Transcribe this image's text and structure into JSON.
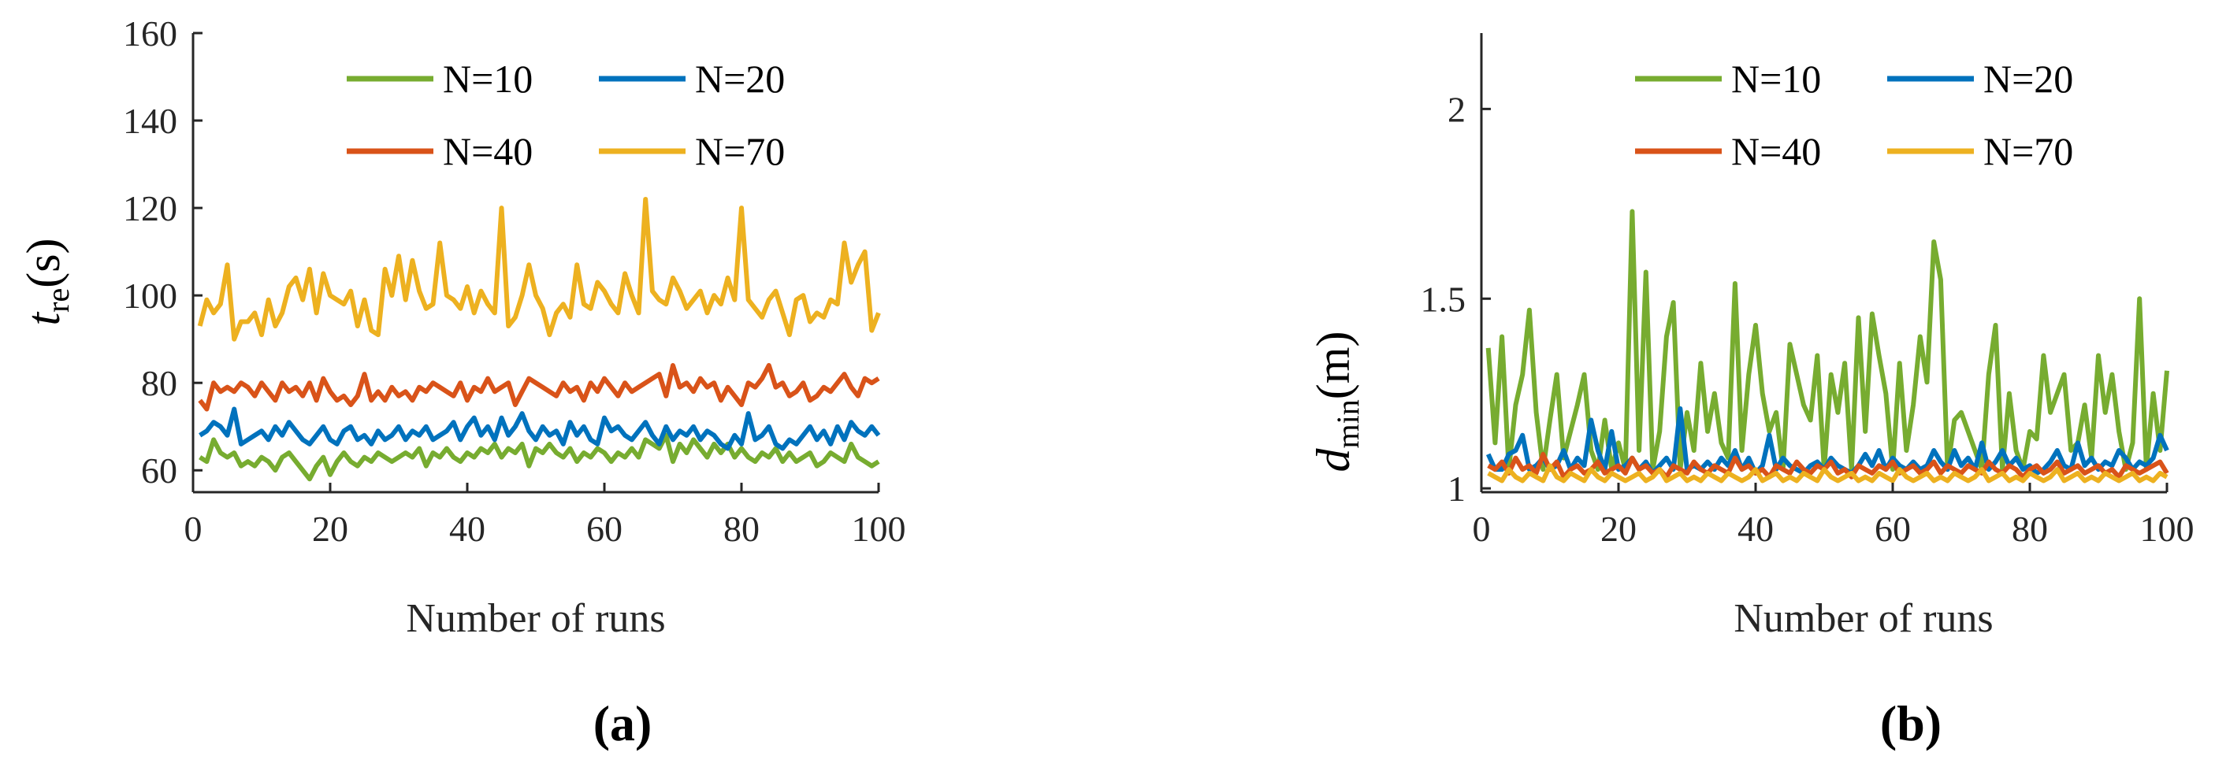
{
  "chart_data": [
    {
      "type": "line",
      "panel_label": "(a)",
      "xlabel": "Number of runs",
      "ylabel": {
        "var": "t",
        "sub": "re",
        "unit": "(s)"
      },
      "xlim": [
        0,
        100
      ],
      "ylim": [
        55,
        160
      ],
      "xticks": [
        0,
        20,
        40,
        60,
        80,
        100
      ],
      "xtick_labels": [
        "0",
        "20",
        "40",
        "60",
        "80",
        "100"
      ],
      "yticks": [
        60,
        80,
        100,
        120,
        140,
        160
      ],
      "ytick_labels": [
        "60",
        "80",
        "100",
        "120",
        "140",
        "160"
      ],
      "legend_position": "top",
      "series": [
        {
          "name": "N=10",
          "color": "#77AC30",
          "x_start": 1,
          "x_step": 1,
          "values": [
            63,
            62,
            67,
            64,
            63,
            64,
            61,
            62,
            61,
            63,
            62,
            60,
            63,
            64,
            62,
            60,
            58,
            61,
            63,
            59,
            62,
            64,
            62,
            61,
            63,
            62,
            64,
            63,
            62,
            63,
            64,
            63,
            65,
            61,
            64,
            63,
            65,
            63,
            62,
            64,
            63,
            65,
            64,
            66,
            63,
            65,
            64,
            66,
            61,
            65,
            64,
            66,
            64,
            63,
            65,
            62,
            64,
            63,
            65,
            64,
            62,
            64,
            63,
            65,
            63,
            67,
            66,
            65,
            68,
            62,
            66,
            64,
            67,
            65,
            63,
            66,
            64,
            66,
            63,
            65,
            63,
            62,
            64,
            63,
            65,
            62,
            64,
            62,
            63,
            64,
            61,
            62,
            64,
            63,
            62,
            66,
            63,
            62,
            61,
            62
          ]
        },
        {
          "name": "N=20",
          "color": "#0072BD",
          "x_start": 1,
          "x_step": 1,
          "values": [
            68,
            69,
            71,
            70,
            68,
            74,
            66,
            67,
            68,
            69,
            67,
            70,
            68,
            71,
            69,
            67,
            66,
            68,
            70,
            67,
            66,
            69,
            70,
            67,
            68,
            66,
            69,
            67,
            68,
            70,
            67,
            69,
            68,
            70,
            67,
            68,
            69,
            71,
            67,
            70,
            72,
            68,
            70,
            67,
            72,
            68,
            70,
            73,
            69,
            67,
            70,
            68,
            69,
            66,
            71,
            68,
            70,
            67,
            66,
            72,
            69,
            70,
            68,
            67,
            69,
            71,
            68,
            66,
            70,
            67,
            69,
            68,
            70,
            67,
            69,
            68,
            66,
            65,
            68,
            66,
            73,
            67,
            68,
            70,
            66,
            65,
            67,
            66,
            68,
            70,
            67,
            69,
            66,
            70,
            67,
            71,
            69,
            68,
            70,
            68
          ]
        },
        {
          "name": "N=40",
          "color": "#D95319",
          "x_start": 1,
          "x_step": 1,
          "values": [
            76,
            74,
            80,
            78,
            79,
            78,
            80,
            79,
            77,
            80,
            78,
            76,
            80,
            78,
            79,
            77,
            80,
            76,
            81,
            78,
            76,
            77,
            75,
            77,
            82,
            76,
            78,
            76,
            79,
            77,
            78,
            76,
            79,
            78,
            80,
            79,
            78,
            77,
            80,
            76,
            79,
            78,
            81,
            78,
            79,
            80,
            75,
            78,
            81,
            80,
            79,
            78,
            77,
            80,
            78,
            79,
            76,
            80,
            78,
            81,
            79,
            77,
            80,
            78,
            79,
            80,
            81,
            82,
            77,
            84,
            79,
            80,
            78,
            81,
            79,
            80,
            76,
            79,
            77,
            75,
            80,
            79,
            81,
            84,
            79,
            80,
            77,
            78,
            80,
            76,
            77,
            79,
            78,
            80,
            82,
            79,
            77,
            81,
            80,
            81
          ]
        },
        {
          "name": "N=70",
          "color": "#EDB120",
          "x_start": 1,
          "x_step": 1,
          "values": [
            93,
            99,
            96,
            98,
            107,
            90,
            94,
            94,
            96,
            91,
            99,
            93,
            96,
            102,
            104,
            99,
            106,
            96,
            105,
            100,
            99,
            98,
            101,
            93,
            99,
            92,
            91,
            106,
            100,
            109,
            99,
            108,
            101,
            97,
            98,
            112,
            100,
            99,
            97,
            102,
            96,
            101,
            98,
            96,
            120,
            93,
            95,
            100,
            107,
            100,
            97,
            91,
            96,
            98,
            95,
            107,
            98,
            97,
            103,
            101,
            98,
            96,
            105,
            100,
            96,
            122,
            101,
            99,
            98,
            104,
            101,
            97,
            99,
            101,
            96,
            100,
            98,
            104,
            99,
            120,
            99,
            97,
            95,
            99,
            101,
            96,
            91,
            99,
            100,
            94,
            96,
            95,
            99,
            98,
            112,
            103,
            107,
            110,
            92,
            96
          ]
        }
      ]
    },
    {
      "type": "line",
      "panel_label": "(b)",
      "xlabel": "Number of runs",
      "ylabel": {
        "var": "d",
        "sub": "min",
        "unit": "(m)"
      },
      "xlim": [
        0,
        100
      ],
      "ylim": [
        0.99,
        2.2
      ],
      "xticks": [
        0,
        20,
        40,
        60,
        80,
        100
      ],
      "xtick_labels": [
        "0",
        "20",
        "40",
        "60",
        "80",
        "100"
      ],
      "yticks": [
        1,
        1.5,
        2
      ],
      "ytick_labels": [
        "1",
        "1.5",
        "2"
      ],
      "legend_position": "top",
      "series": [
        {
          "name": "N=10",
          "color": "#77AC30",
          "x_start": 1,
          "x_step": 1,
          "values": [
            1.37,
            1.12,
            1.4,
            1.05,
            1.22,
            1.3,
            1.47,
            1.2,
            1.05,
            1.18,
            1.3,
            1.08,
            1.15,
            1.22,
            1.3,
            1.1,
            1.05,
            1.18,
            1.05,
            1.12,
            1.05,
            1.73,
            1.1,
            1.57,
            1.05,
            1.15,
            1.4,
            1.49,
            1.05,
            1.2,
            1.1,
            1.33,
            1.15,
            1.25,
            1.12,
            1.08,
            1.54,
            1.1,
            1.3,
            1.43,
            1.25,
            1.15,
            1.2,
            1.05,
            1.38,
            1.3,
            1.22,
            1.18,
            1.35,
            1.05,
            1.3,
            1.2,
            1.33,
            1.05,
            1.45,
            1.15,
            1.46,
            1.35,
            1.25,
            1.05,
            1.33,
            1.1,
            1.22,
            1.4,
            1.28,
            1.65,
            1.55,
            1.05,
            1.18,
            1.2,
            1.15,
            1.1,
            1.05,
            1.3,
            1.43,
            1.05,
            1.25,
            1.1,
            1.05,
            1.15,
            1.13,
            1.35,
            1.2,
            1.25,
            1.3,
            1.1,
            1.12,
            1.22,
            1.08,
            1.35,
            1.2,
            1.3,
            1.15,
            1.05,
            1.12,
            1.5,
            1.05,
            1.25,
            1.1,
            1.31
          ]
        },
        {
          "name": "N=20",
          "color": "#0072BD",
          "x_start": 1,
          "x_step": 1,
          "values": [
            1.09,
            1.05,
            1.05,
            1.09,
            1.1,
            1.14,
            1.05,
            1.06,
            1.08,
            1.05,
            1.06,
            1.1,
            1.05,
            1.08,
            1.06,
            1.18,
            1.1,
            1.05,
            1.15,
            1.05,
            1.06,
            1.08,
            1.05,
            1.07,
            1.04,
            1.06,
            1.08,
            1.05,
            1.21,
            1.05,
            1.06,
            1.05,
            1.07,
            1.05,
            1.08,
            1.06,
            1.1,
            1.05,
            1.08,
            1.04,
            1.06,
            1.14,
            1.05,
            1.08,
            1.06,
            1.05,
            1.04,
            1.06,
            1.07,
            1.05,
            1.08,
            1.06,
            1.05,
            1.04,
            1.06,
            1.09,
            1.06,
            1.1,
            1.05,
            1.08,
            1.06,
            1.05,
            1.07,
            1.05,
            1.06,
            1.1,
            1.07,
            1.05,
            1.1,
            1.06,
            1.08,
            1.05,
            1.12,
            1.05,
            1.07,
            1.1,
            1.06,
            1.08,
            1.05,
            1.06,
            1.04,
            1.05,
            1.07,
            1.1,
            1.06,
            1.05,
            1.12,
            1.06,
            1.08,
            1.05,
            1.07,
            1.06,
            1.1,
            1.08,
            1.05,
            1.07,
            1.06,
            1.08,
            1.14,
            1.1
          ]
        },
        {
          "name": "N=40",
          "color": "#D95319",
          "x_start": 1,
          "x_step": 1,
          "values": [
            1.06,
            1.05,
            1.07,
            1.04,
            1.08,
            1.05,
            1.06,
            1.04,
            1.09,
            1.05,
            1.07,
            1.03,
            1.05,
            1.06,
            1.04,
            1.05,
            1.07,
            1.04,
            1.05,
            1.06,
            1.04,
            1.08,
            1.05,
            1.06,
            1.04,
            1.05,
            1.03,
            1.06,
            1.05,
            1.04,
            1.07,
            1.05,
            1.04,
            1.06,
            1.05,
            1.04,
            1.08,
            1.05,
            1.06,
            1.04,
            1.05,
            1.03,
            1.06,
            1.05,
            1.04,
            1.07,
            1.05,
            1.04,
            1.06,
            1.05,
            1.07,
            1.04,
            1.05,
            1.03,
            1.06,
            1.05,
            1.04,
            1.06,
            1.05,
            1.07,
            1.04,
            1.05,
            1.06,
            1.04,
            1.05,
            1.07,
            1.04,
            1.06,
            1.05,
            1.04,
            1.06,
            1.05,
            1.04,
            1.07,
            1.05,
            1.04,
            1.06,
            1.05,
            1.03,
            1.05,
            1.06,
            1.04,
            1.05,
            1.07,
            1.04,
            1.05,
            1.06,
            1.04,
            1.05,
            1.06,
            1.04,
            1.05,
            1.03,
            1.06,
            1.05,
            1.04,
            1.05,
            1.06,
            1.07,
            1.04
          ]
        },
        {
          "name": "N=70",
          "color": "#EDB120",
          "x_start": 1,
          "x_step": 1,
          "values": [
            1.04,
            1.03,
            1.02,
            1.05,
            1.03,
            1.02,
            1.04,
            1.03,
            1.02,
            1.06,
            1.03,
            1.02,
            1.04,
            1.03,
            1.02,
            1.05,
            1.03,
            1.02,
            1.04,
            1.03,
            1.02,
            1.03,
            1.04,
            1.02,
            1.03,
            1.05,
            1.02,
            1.03,
            1.04,
            1.02,
            1.03,
            1.02,
            1.04,
            1.03,
            1.02,
            1.04,
            1.03,
            1.02,
            1.03,
            1.05,
            1.02,
            1.03,
            1.04,
            1.02,
            1.03,
            1.02,
            1.04,
            1.03,
            1.02,
            1.05,
            1.03,
            1.02,
            1.03,
            1.04,
            1.02,
            1.03,
            1.02,
            1.04,
            1.03,
            1.02,
            1.05,
            1.03,
            1.02,
            1.03,
            1.04,
            1.02,
            1.03,
            1.02,
            1.04,
            1.03,
            1.02,
            1.03,
            1.05,
            1.02,
            1.03,
            1.04,
            1.02,
            1.03,
            1.02,
            1.04,
            1.03,
            1.02,
            1.03,
            1.05,
            1.02,
            1.03,
            1.04,
            1.02,
            1.03,
            1.02,
            1.04,
            1.03,
            1.02,
            1.03,
            1.04,
            1.02,
            1.03,
            1.02,
            1.04,
            1.03
          ]
        }
      ]
    }
  ]
}
